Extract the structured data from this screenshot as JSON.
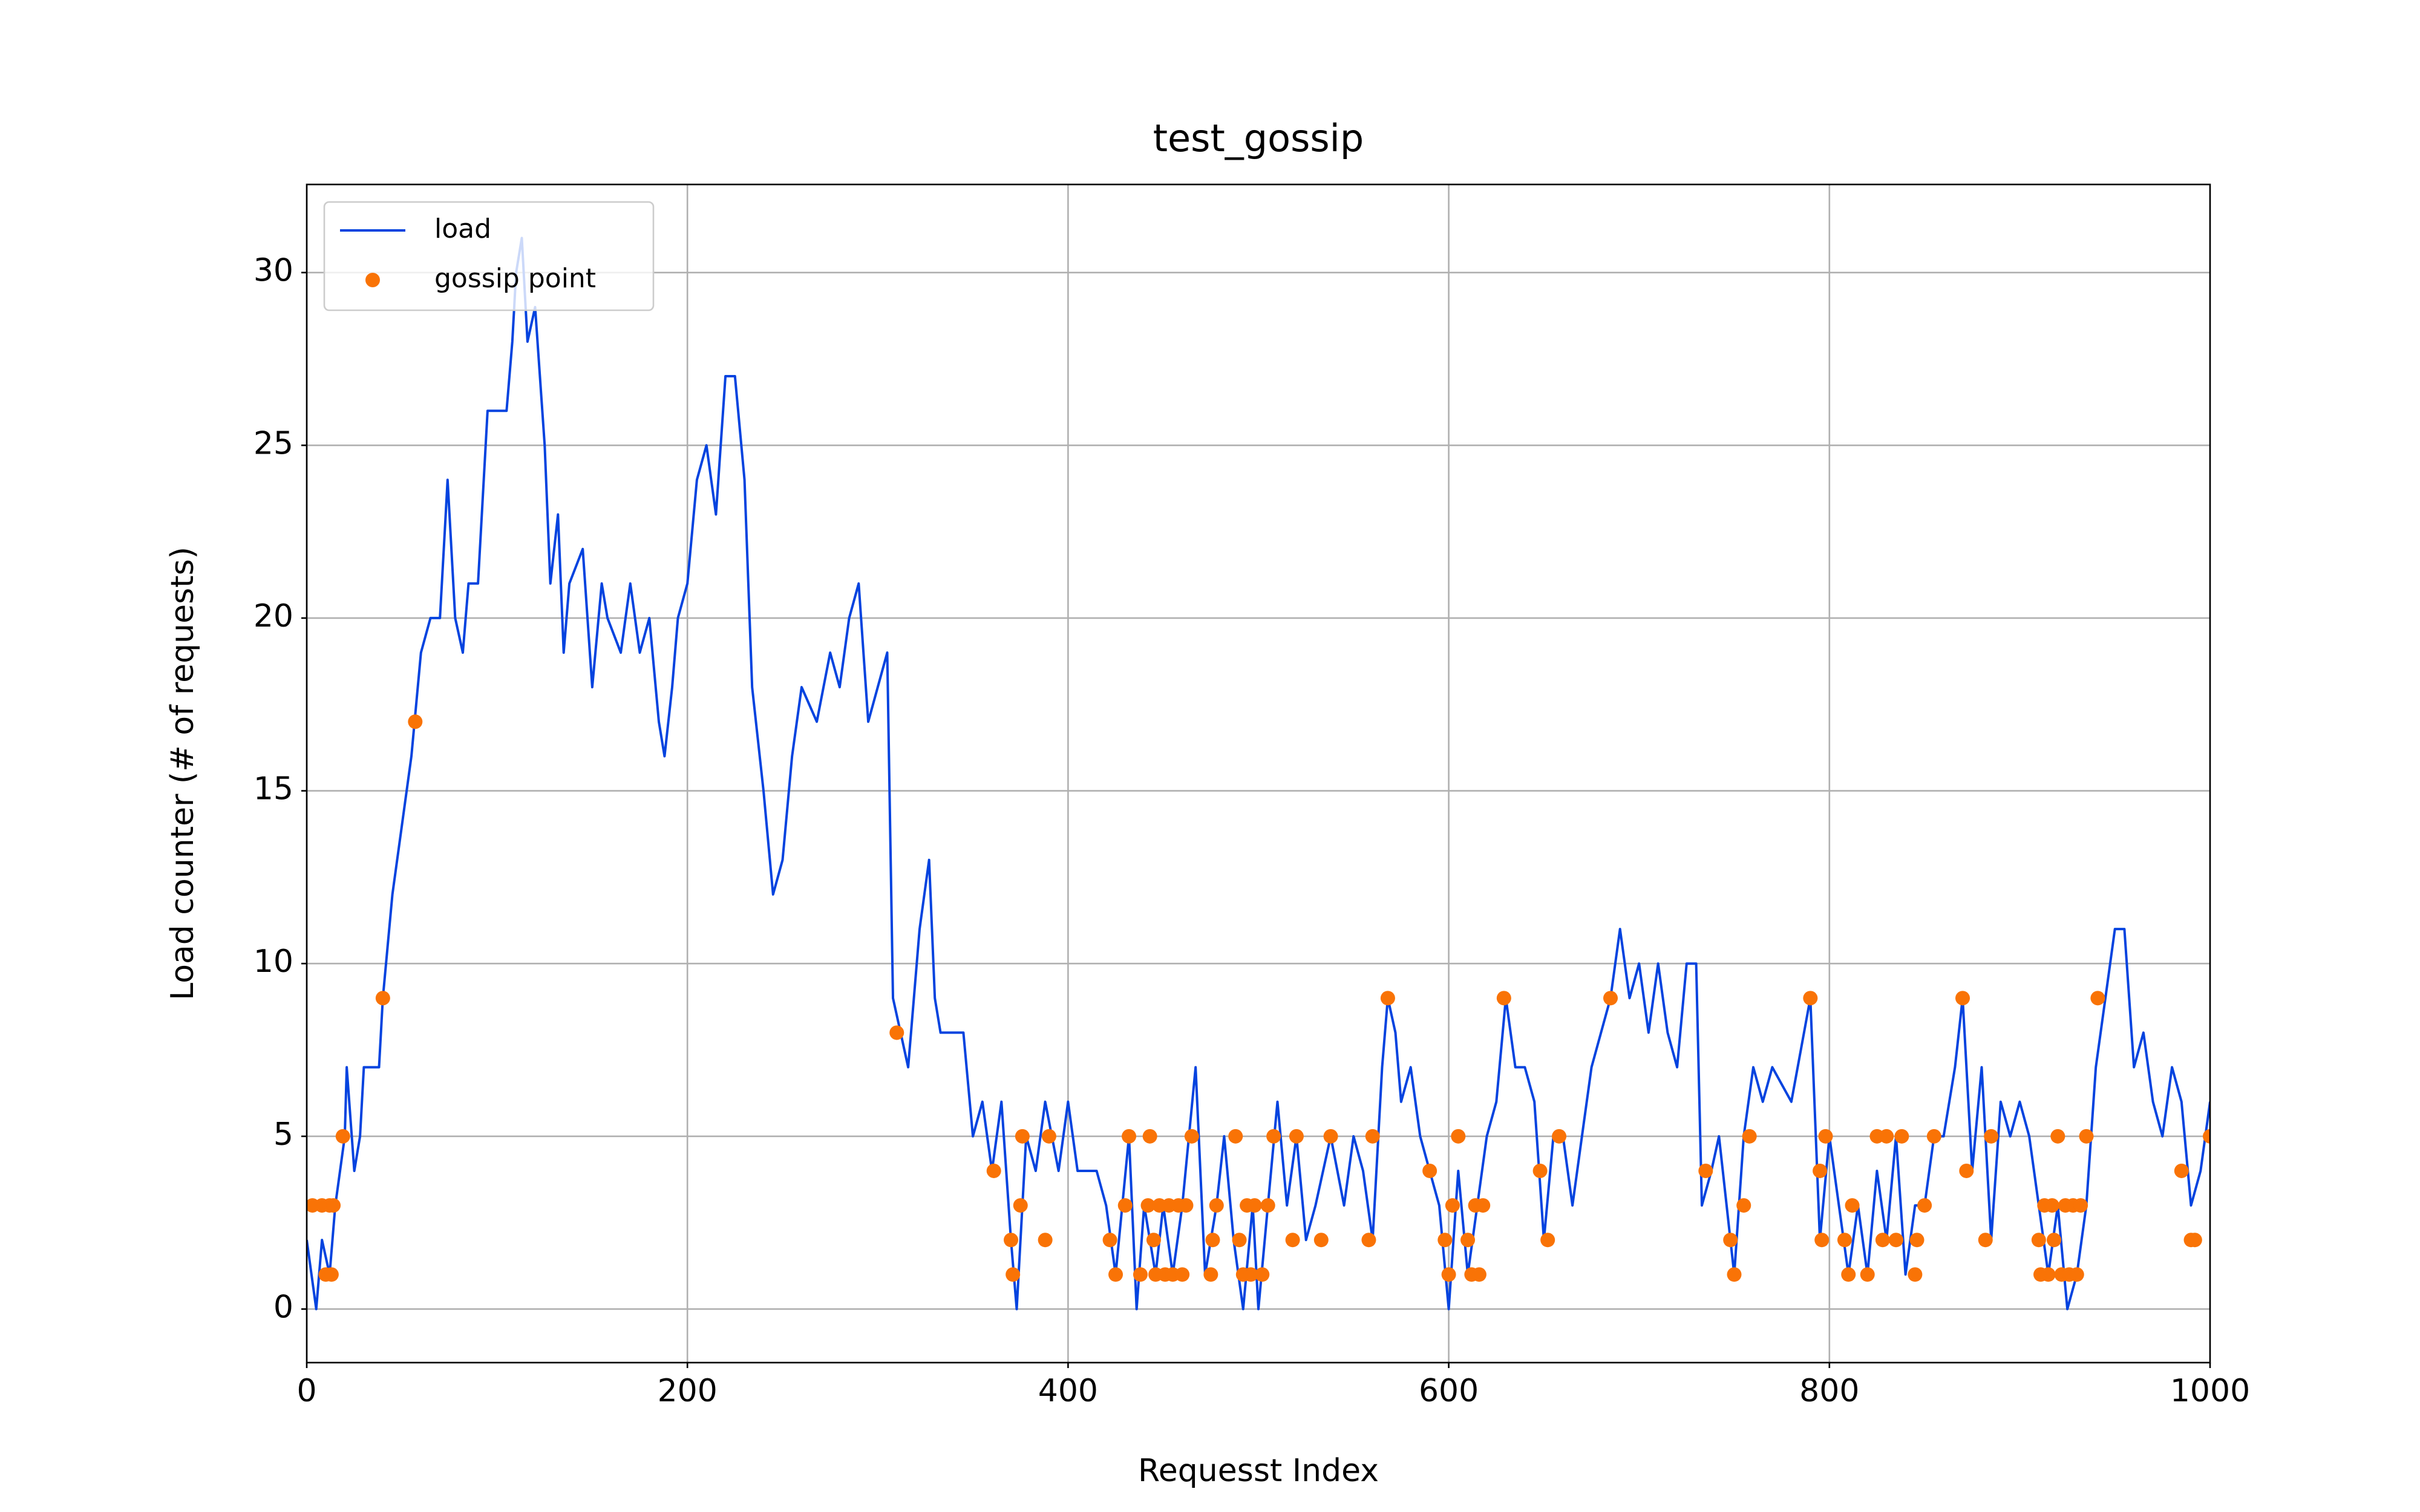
{
  "chart_data": {
    "type": "line",
    "title": "test_gossip",
    "x_label": "Requesst Index",
    "y_label": "Load counter (# of requests)",
    "xlim": [
      0,
      1000
    ],
    "ylim": [
      -1.55,
      32.55
    ],
    "xticks": [
      0,
      200,
      400,
      600,
      800,
      1000
    ],
    "yticks": [
      0,
      5,
      10,
      15,
      20,
      25,
      30
    ],
    "grid": true,
    "legend": "upper left",
    "series": [
      {
        "name": "load",
        "color": "#0343df",
        "style": "line",
        "x": [
          0,
          5,
          8,
          12,
          15,
          20,
          21,
          25,
          28,
          30,
          38,
          40,
          45,
          50,
          55,
          60,
          65,
          70,
          73,
          74,
          78,
          82,
          85,
          90,
          95,
          105,
          108,
          110,
          113,
          116,
          120,
          125,
          128,
          132,
          135,
          138,
          145,
          150,
          155,
          158,
          165,
          170,
          175,
          180,
          185,
          188,
          192,
          195,
          200,
          205,
          210,
          215,
          220,
          225,
          230,
          234,
          240,
          245,
          250,
          255,
          260,
          268,
          275,
          280,
          285,
          290,
          295,
          300,
          305,
          308,
          312,
          316,
          322,
          327,
          330,
          333,
          340,
          345,
          350,
          355,
          360,
          365,
          370,
          373,
          378,
          383,
          388,
          395,
          400,
          405,
          415,
          420,
          425,
          432,
          436,
          440,
          446,
          450,
          455,
          460,
          467,
          472,
          478,
          482,
          487,
          492,
          497,
          500,
          505,
          510,
          515,
          520,
          525,
          530,
          538,
          545,
          550,
          555,
          560,
          565,
          568,
          572,
          575,
          580,
          585,
          590,
          595,
          600,
          605,
          610,
          615,
          620,
          625,
          630,
          635,
          640,
          645,
          650,
          655,
          660,
          665,
          670,
          675,
          680,
          685,
          690,
          695,
          700,
          705,
          710,
          715,
          720,
          725,
          730,
          733,
          738,
          742,
          746,
          750,
          755,
          760,
          765,
          770,
          780,
          790,
          795,
          800,
          805,
          810,
          815,
          820,
          825,
          830,
          835,
          840,
          845,
          850,
          855,
          860,
          866,
          870,
          875,
          880,
          885,
          890,
          895,
          900,
          905,
          910,
          915,
          920,
          925,
          930,
          935,
          940,
          945,
          950,
          955,
          960,
          965,
          970,
          975,
          980,
          985,
          990,
          995,
          1000
        ],
        "values": [
          2,
          0,
          2,
          1,
          3,
          5,
          7,
          4,
          5,
          7,
          7,
          9,
          12,
          14,
          16,
          19,
          20,
          20,
          23,
          24,
          20,
          19,
          21,
          21,
          26,
          26,
          28,
          30,
          31,
          28,
          29,
          25,
          21,
          23,
          19,
          21,
          22,
          18,
          21,
          20,
          19,
          21,
          19,
          20,
          17,
          16,
          18,
          20,
          21,
          24,
          25,
          23,
          27,
          27,
          24,
          18,
          15,
          12,
          13,
          16,
          18,
          17,
          19,
          18,
          20,
          21,
          17,
          18,
          19,
          9,
          8,
          7,
          11,
          13,
          9,
          8,
          8,
          8,
          5,
          6,
          4,
          6,
          2,
          0,
          5,
          4,
          6,
          4,
          6,
          4,
          4,
          3,
          1,
          5,
          0,
          3,
          1,
          3,
          1,
          3,
          7,
          1,
          3,
          5,
          2,
          0,
          3,
          0,
          3,
          6,
          3,
          5,
          2,
          3,
          5,
          3,
          5,
          4,
          2,
          7,
          9,
          8,
          6,
          7,
          5,
          4,
          3,
          0,
          4,
          1,
          3,
          5,
          6,
          9,
          7,
          7,
          6,
          2,
          5,
          5,
          3,
          5,
          7,
          8,
          9,
          11,
          9,
          10,
          8,
          10,
          8,
          7,
          10,
          10,
          3,
          4,
          5,
          3,
          1,
          5,
          7,
          6,
          7,
          6,
          9,
          2,
          5,
          3,
          1,
          3,
          1,
          4,
          2,
          5,
          1,
          3,
          3,
          5,
          5,
          7,
          9,
          4,
          7,
          2,
          6,
          5,
          6,
          5,
          3,
          1,
          3,
          0,
          1,
          3,
          7,
          9,
          11,
          11,
          7,
          8,
          6,
          5,
          7,
          6,
          3,
          4,
          6
        ]
      },
      {
        "name": "gossip point",
        "color": "#f97306",
        "style": "markers",
        "x": [
          3,
          8,
          12,
          14,
          10,
          13,
          19,
          40,
          57,
          310,
          361,
          370,
          371,
          375,
          376,
          388,
          390,
          422,
          425,
          430,
          432,
          438,
          442,
          443,
          445,
          446,
          448,
          451,
          453,
          455,
          458,
          460,
          462,
          465,
          475,
          476,
          478,
          488,
          490,
          492,
          494,
          496,
          498,
          502,
          505,
          508,
          518,
          520,
          533,
          538,
          558,
          560,
          568,
          590,
          598,
          600,
          602,
          605,
          610,
          612,
          614,
          616,
          618,
          629,
          648,
          652,
          658,
          685,
          735,
          748,
          750,
          755,
          758,
          790,
          795,
          796,
          798,
          808,
          810,
          812,
          820,
          825,
          828,
          830,
          835,
          838,
          845,
          846,
          850,
          855,
          870,
          872,
          882,
          885,
          910,
          911,
          913,
          915,
          917,
          918,
          920,
          922,
          924,
          926,
          928,
          930,
          932,
          935,
          941,
          985,
          990,
          992,
          1000
        ],
        "values": [
          3,
          3,
          3,
          3,
          1,
          1,
          5,
          9,
          17,
          8,
          4,
          2,
          1,
          3,
          5,
          2,
          5,
          2,
          1,
          3,
          5,
          1,
          3,
          5,
          2,
          1,
          3,
          1,
          3,
          1,
          3,
          1,
          3,
          5,
          1,
          2,
          3,
          5,
          2,
          1,
          3,
          1,
          3,
          1,
          3,
          5,
          2,
          5,
          2,
          5,
          2,
          5,
          9,
          4,
          2,
          1,
          3,
          5,
          2,
          1,
          3,
          1,
          3,
          9,
          4,
          2,
          5,
          9,
          4,
          2,
          1,
          3,
          5,
          9,
          4,
          2,
          5,
          2,
          1,
          3,
          1,
          5,
          2,
          5,
          2,
          5,
          1,
          2,
          3,
          5,
          9,
          4,
          2,
          5,
          2,
          1,
          3,
          1,
          3,
          2,
          5,
          1,
          3,
          1,
          3,
          1,
          3,
          5,
          9,
          4,
          2,
          2,
          5
        ]
      }
    ]
  }
}
